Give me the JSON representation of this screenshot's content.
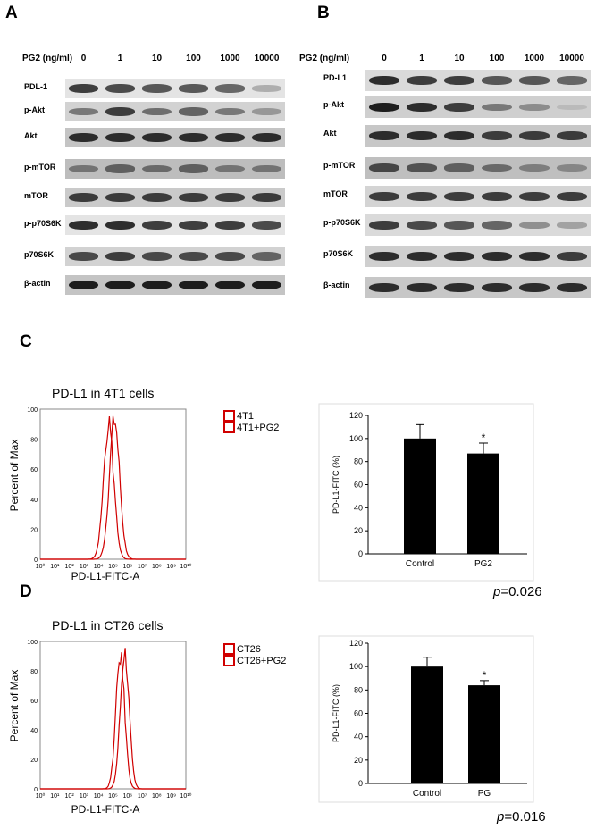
{
  "panels": {
    "A": "A",
    "B": "B",
    "C": "C",
    "D": "D"
  },
  "blot_A": {
    "dose_label": "PG2 (ng/ml)",
    "doses": [
      "0",
      "1",
      "10",
      "100",
      "1000",
      "10000"
    ],
    "rows": [
      {
        "label": "PDL-1",
        "intensity": [
          0.85,
          0.8,
          0.75,
          0.75,
          0.7,
          0.35
        ]
      },
      {
        "label": "p-Akt",
        "intensity": [
          0.6,
          0.85,
          0.65,
          0.7,
          0.6,
          0.45
        ]
      },
      {
        "label": "Akt",
        "intensity": [
          0.9,
          0.9,
          0.9,
          0.9,
          0.9,
          0.9
        ]
      },
      {
        "label": "p-mTOR",
        "intensity": [
          0.6,
          0.7,
          0.65,
          0.7,
          0.6,
          0.6
        ]
      },
      {
        "label": "mTOR",
        "intensity": [
          0.85,
          0.85,
          0.85,
          0.85,
          0.85,
          0.85
        ]
      },
      {
        "label": "p-p70S6K",
        "intensity": [
          0.9,
          0.9,
          0.85,
          0.85,
          0.85,
          0.8
        ]
      },
      {
        "label": "p70S6K",
        "intensity": [
          0.8,
          0.85,
          0.8,
          0.8,
          0.8,
          0.7
        ]
      },
      {
        "label": "β-actin",
        "intensity": [
          0.95,
          0.95,
          0.95,
          0.95,
          0.95,
          0.95
        ]
      }
    ]
  },
  "blot_B": {
    "dose_label": "PG2 (ng/ml)",
    "doses": [
      "0",
      "1",
      "10",
      "100",
      "1000",
      "10000"
    ],
    "rows": [
      {
        "label": "PD-L1",
        "intensity": [
          0.9,
          0.85,
          0.85,
          0.75,
          0.75,
          0.7
        ]
      },
      {
        "label": "p-Akt",
        "intensity": [
          0.95,
          0.9,
          0.85,
          0.6,
          0.5,
          0.2
        ]
      },
      {
        "label": "Akt",
        "intensity": [
          0.9,
          0.9,
          0.9,
          0.85,
          0.85,
          0.85
        ]
      },
      {
        "label": "p-mTOR",
        "intensity": [
          0.8,
          0.75,
          0.7,
          0.65,
          0.55,
          0.5
        ]
      },
      {
        "label": "mTOR",
        "intensity": [
          0.85,
          0.85,
          0.85,
          0.85,
          0.85,
          0.85
        ]
      },
      {
        "label": "p-p70S6K",
        "intensity": [
          0.85,
          0.8,
          0.75,
          0.7,
          0.5,
          0.4
        ]
      },
      {
        "label": "p70S6K",
        "intensity": [
          0.9,
          0.9,
          0.9,
          0.9,
          0.9,
          0.85
        ]
      },
      {
        "label": "β-actin",
        "intensity": [
          0.9,
          0.9,
          0.9,
          0.9,
          0.9,
          0.9
        ]
      }
    ]
  },
  "panel_C": {
    "histogram_title": "PD-L1 in 4T1 cells",
    "y_label": "Percent of Max",
    "x_label": "PD-L1-FITC-A",
    "y_ticks": [
      "0",
      "20",
      "40",
      "60",
      "80",
      "100"
    ],
    "x_ticks": [
      "10⁰",
      "10¹",
      "10²",
      "10³",
      "10⁴",
      "10⁵",
      "10⁶",
      "10⁷",
      "10⁸",
      "10⁹",
      "10¹⁰"
    ],
    "legend": [
      "4T1",
      "4T1+PG2"
    ],
    "bar_ylabel": "PD-L1-FITC (%)",
    "p_prefix": "p",
    "p_value": "=0.026",
    "histogram_color": "#d00000"
  },
  "panel_D": {
    "histogram_title": "PD-L1 in CT26 cells",
    "y_label": "Percent of Max",
    "x_label": "PD-L1-FITC-A",
    "y_ticks": [
      "0",
      "20",
      "40",
      "60",
      "80",
      "100"
    ],
    "x_ticks": [
      "10⁰",
      "10¹",
      "10²",
      "10³",
      "10⁴",
      "10⁵",
      "10⁶",
      "10⁷",
      "10⁸",
      "10⁹",
      "10¹⁰"
    ],
    "legend": [
      "CT26",
      "CT26+PG2"
    ],
    "bar_ylabel": "PD-L1-FITC (%)",
    "p_prefix": "p",
    "p_value": "=0.016",
    "histogram_color": "#d00000"
  },
  "chart_data": [
    {
      "type": "bar",
      "panel": "C",
      "categories": [
        "Control",
        "PG2"
      ],
      "values": [
        100,
        87
      ],
      "errors": [
        12,
        9
      ],
      "annotations": [
        "",
        "*"
      ],
      "ylabel": "PD-L1-FITC (%)",
      "ylim": [
        0,
        120
      ],
      "yticks": [
        0,
        20,
        40,
        60,
        80,
        100,
        120
      ],
      "bar_color": "#000000"
    },
    {
      "type": "bar",
      "panel": "D",
      "categories": [
        "Control",
        "PG"
      ],
      "values": [
        100,
        84
      ],
      "errors": [
        8,
        4
      ],
      "annotations": [
        "",
        "*"
      ],
      "ylabel": "PD-L1-FITC (%)",
      "ylim": [
        0,
        120
      ],
      "yticks": [
        0,
        20,
        40,
        60,
        80,
        100,
        120
      ],
      "bar_color": "#000000"
    }
  ]
}
